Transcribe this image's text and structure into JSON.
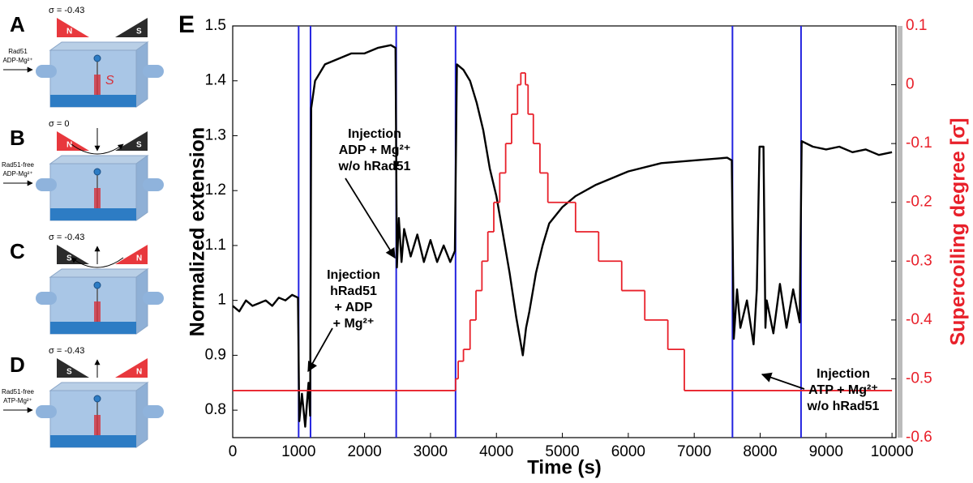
{
  "panels": [
    {
      "letter": "A",
      "sigma": "σ = -0.43",
      "flags": [
        {
          "label": "N",
          "color": "#e8383d"
        },
        {
          "label": "S",
          "color": "#2b2b2b"
        }
      ],
      "inlet": [
        "Rad51",
        "ADP-Mg²⁺"
      ],
      "filament_label": "S"
    },
    {
      "letter": "B",
      "sigma": "σ = 0",
      "flags": [
        {
          "label": "N",
          "color": "#e8383d"
        },
        {
          "label": "S",
          "color": "#2b2b2b"
        }
      ],
      "inlet": [
        "Rad51-free",
        "ADP-Mg²⁺"
      ]
    },
    {
      "letter": "C",
      "sigma": "σ = -0.43",
      "flags": [
        {
          "label": "S",
          "color": "#2b2b2b"
        },
        {
          "label": "N",
          "color": "#e8383d"
        }
      ]
    },
    {
      "letter": "D",
      "sigma": "σ = -0.43",
      "flags": [
        {
          "label": "S",
          "color": "#2b2b2b"
        },
        {
          "label": "N",
          "color": "#e8383d"
        }
      ],
      "inlet": [
        "Rad51-free",
        "ATP-Mg²⁺"
      ]
    }
  ],
  "chart_data": {
    "type": "line",
    "panel_label": "E",
    "xlabel": "Time (s)",
    "ylabel": "Normalized extension",
    "y2label": "Supercoiling degree [σ]",
    "xlim": [
      0,
      10060
    ],
    "ylim": [
      0.75,
      1.5
    ],
    "y2lim": [
      -0.6,
      0.1
    ],
    "xticks": [
      0,
      1000,
      2000,
      3000,
      4000,
      5000,
      6000,
      7000,
      8000,
      9000,
      10000
    ],
    "yticks": [
      0.8,
      0.9,
      1,
      1.1,
      1.2,
      1.3,
      1.4,
      1.5
    ],
    "y2ticks": [
      -0.6,
      -0.5,
      -0.4,
      -0.3,
      -0.2,
      -0.1,
      0,
      0.1
    ],
    "y2color": "#e8202a",
    "series": [
      {
        "name": "Normalized extension",
        "color": "#000000",
        "x": [
          0,
          100,
          200,
          300,
          400,
          500,
          600,
          700,
          800,
          900,
          990,
          1010,
          1050,
          1100,
          1150,
          1175,
          1190,
          1250,
          1400,
          1600,
          1800,
          2000,
          2200,
          2400,
          2470,
          2490,
          2520,
          2560,
          2600,
          2700,
          2800,
          2900,
          3000,
          3100,
          3200,
          3300,
          3370,
          3400,
          3500,
          3600,
          3700,
          3800,
          3900,
          4000,
          4100,
          4200,
          4300,
          4400,
          4450,
          4500,
          4600,
          4700,
          4800,
          5000,
          5200,
          5500,
          6000,
          6500,
          7000,
          7500,
          7570,
          7600,
          7650,
          7700,
          7800,
          7900,
          7950,
          7990,
          8050,
          8080,
          8100,
          8200,
          8300,
          8400,
          8500,
          8600,
          8630,
          8800,
          9000,
          9200,
          9400,
          9600,
          9800,
          10000
        ],
        "values": [
          0.99,
          0.98,
          1.0,
          0.99,
          0.995,
          1.0,
          0.99,
          1.005,
          1.0,
          1.01,
          1.005,
          0.78,
          0.83,
          0.77,
          0.85,
          0.79,
          1.35,
          1.4,
          1.43,
          1.44,
          1.45,
          1.45,
          1.46,
          1.465,
          1.46,
          1.06,
          1.15,
          1.07,
          1.13,
          1.08,
          1.12,
          1.07,
          1.11,
          1.07,
          1.1,
          1.07,
          1.09,
          1.43,
          1.42,
          1.4,
          1.36,
          1.31,
          1.24,
          1.19,
          1.12,
          1.05,
          0.97,
          0.9,
          0.95,
          0.98,
          1.05,
          1.1,
          1.14,
          1.17,
          1.19,
          1.21,
          1.235,
          1.25,
          1.255,
          1.26,
          1.255,
          0.93,
          1.02,
          0.95,
          1.0,
          0.92,
          1.02,
          1.28,
          1.28,
          0.95,
          1.0,
          0.94,
          1.03,
          0.95,
          1.02,
          0.96,
          1.29,
          1.28,
          1.275,
          1.28,
          1.27,
          1.275,
          1.265,
          1.27
        ]
      },
      {
        "name": "Supercoiling degree",
        "color": "#e8202a",
        "axis": "y2",
        "step": "post",
        "x": [
          0,
          3380,
          3420,
          3500,
          3600,
          3690,
          3780,
          3870,
          3960,
          4050,
          4140,
          4230,
          4320,
          4370,
          4440,
          4480,
          4560,
          4660,
          4780,
          5200,
          5550,
          5900,
          6250,
          6600,
          6850,
          10000
        ],
        "values": [
          -0.52,
          -0.5,
          -0.47,
          -0.45,
          -0.4,
          -0.35,
          -0.3,
          -0.25,
          -0.2,
          -0.15,
          -0.1,
          -0.05,
          0,
          0.02,
          0,
          -0.05,
          -0.1,
          -0.15,
          -0.2,
          -0.25,
          -0.3,
          -0.35,
          -0.4,
          -0.45,
          -0.52,
          -0.52
        ]
      }
    ],
    "vlines": {
      "color": "#2323e0",
      "x": [
        1000,
        1180,
        2480,
        3380,
        7580,
        8620
      ]
    },
    "annotations": [
      {
        "lines": [
          "Injection",
          "hRad51",
          "+ ADP",
          "+ Mg²⁺"
        ]
      },
      {
        "lines": [
          "Injection",
          "ADP + Mg²⁺",
          "w/o hRad51"
        ]
      },
      {
        "lines": [
          "Injection",
          "ATP + Mg²⁺",
          "w/o hRad51"
        ]
      }
    ]
  }
}
